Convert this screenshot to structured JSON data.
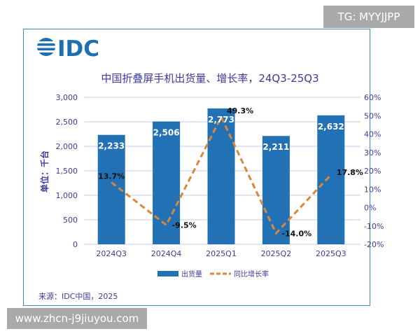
{
  "watermarks": {
    "top": "TG: MYYJJPP",
    "bottom": "www.zhcn-j9jiuyou.com"
  },
  "logo_text": "IDC",
  "source": "来源：IDC中国，2025",
  "chart_data": {
    "type": "bar",
    "title": "中国折叠屏手机出货量、增长率，24Q3-25Q3",
    "ylabel": "单位：千台",
    "categories": [
      "2024Q3",
      "2024Q4",
      "2025Q1",
      "2025Q2",
      "2025Q3"
    ],
    "series": [
      {
        "name": "出货量",
        "type": "bar",
        "axis": "left",
        "values": [
          2233,
          2506,
          2773,
          2211,
          2632
        ],
        "labels": [
          "2,233",
          "2,506",
          "2,773",
          "2,211",
          "2,632"
        ],
        "color": "#2271b5"
      },
      {
        "name": "同比增长率",
        "type": "line",
        "axis": "right",
        "dashed": true,
        "values": [
          13.7,
          -9.5,
          49.3,
          -14.0,
          17.8
        ],
        "labels": [
          "13.7%",
          "-9.5%",
          "49.3%",
          "-14.0%",
          "17.8%"
        ],
        "color": "#d9873a"
      }
    ],
    "ylim": [
      0,
      3000
    ],
    "yticks": [
      "0",
      "500",
      "1,000",
      "1,500",
      "2,000",
      "2,500",
      "3,000"
    ],
    "y2lim": [
      -20,
      60
    ],
    "y2ticks": [
      "-20%",
      "-10%",
      "0%",
      "10%",
      "20%",
      "30%",
      "40%",
      "50%",
      "60%"
    ],
    "legend": "bottom",
    "grid": true
  }
}
